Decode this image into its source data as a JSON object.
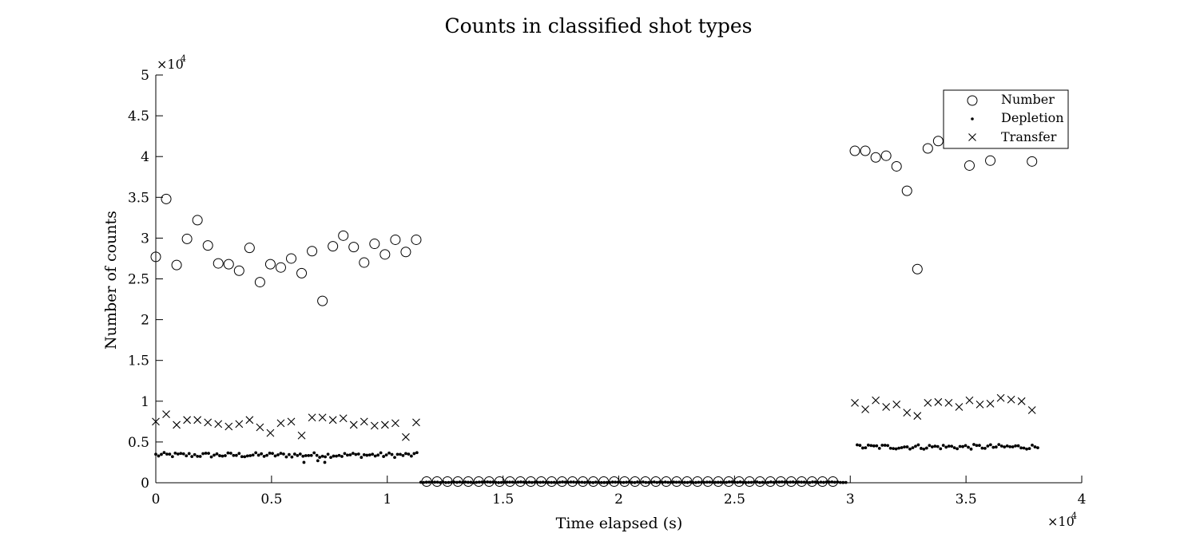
{
  "chart_data": {
    "type": "scatter",
    "title": "Counts in classified shot types",
    "xlabel": "Time elapsed (s)",
    "ylabel": "Number of counts",
    "x_multiplier_label": "×10",
    "x_multiplier_exp": "4",
    "y_multiplier_label": "×10",
    "y_multiplier_exp": "4",
    "xlim": [
      0,
      40000
    ],
    "ylim": [
      0,
      50000
    ],
    "x_ticks": [
      0,
      5000,
      10000,
      15000,
      20000,
      25000,
      30000,
      35000,
      40000
    ],
    "x_tick_labels": [
      "0",
      "0.5",
      "1",
      "1.5",
      "2",
      "2.5",
      "3",
      "3.5",
      "4"
    ],
    "y_ticks": [
      0,
      5000,
      10000,
      15000,
      20000,
      25000,
      30000,
      35000,
      40000,
      45000,
      50000
    ],
    "y_tick_labels": [
      "0",
      "0.5",
      "1",
      "1.5",
      "2",
      "2.5",
      "3",
      "3.5",
      "4",
      "4.5",
      "5"
    ],
    "grid": false,
    "legend_position": "top-right",
    "series": [
      {
        "name": "Number",
        "marker": "circle",
        "x": [
          0,
          450,
          900,
          1350,
          1800,
          2250,
          2700,
          3150,
          3600,
          4050,
          4500,
          4950,
          5400,
          5850,
          6300,
          6750,
          7200,
          7650,
          8100,
          8550,
          9000,
          9450,
          9900,
          10350,
          10800,
          11250,
          11700,
          12150,
          12600,
          13050,
          13500,
          13950,
          14400,
          14850,
          15300,
          15750,
          16200,
          16650,
          17100,
          17550,
          18000,
          18450,
          18900,
          19350,
          19800,
          20250,
          20700,
          21150,
          21600,
          22050,
          22500,
          22950,
          23400,
          23850,
          24300,
          24750,
          25200,
          25650,
          26100,
          26550,
          27000,
          27450,
          27900,
          28350,
          28800,
          29250,
          30200,
          30650,
          31100,
          31550,
          32000,
          32450,
          32900,
          33350,
          33800,
          34700,
          35150,
          36050,
          36950,
          37850
        ],
        "y": [
          27700,
          34800,
          26700,
          29900,
          32200,
          29100,
          26900,
          26800,
          26000,
          28800,
          24600,
          26800,
          26400,
          27500,
          25700,
          28400,
          22300,
          29000,
          30300,
          28900,
          27000,
          29300,
          28000,
          29800,
          28300,
          29800,
          150,
          150,
          150,
          150,
          150,
          150,
          150,
          150,
          150,
          150,
          150,
          150,
          150,
          150,
          150,
          150,
          150,
          150,
          150,
          150,
          150,
          150,
          150,
          150,
          150,
          150,
          150,
          150,
          150,
          150,
          150,
          150,
          150,
          150,
          150,
          150,
          150,
          150,
          150,
          150,
          40700,
          40700,
          39900,
          40100,
          38800,
          35800,
          26200,
          41000,
          41900,
          42300,
          38900,
          39500,
          42300,
          39400
        ]
      },
      {
        "name": "Depletion",
        "marker": "dot",
        "segments": [
          {
            "x_start": 0,
            "x_end": 11300,
            "level": 3400,
            "jitter": 300,
            "step": 120
          },
          {
            "x_start": 11450,
            "x_end": 29900,
            "level": 60,
            "jitter": 40,
            "step": 120
          },
          {
            "x_start": 30300,
            "x_end": 38200,
            "level": 4400,
            "jitter": 300,
            "step": 120
          }
        ],
        "outliers": [
          {
            "x": 6400,
            "y": 2500
          },
          {
            "x": 7300,
            "y": 2500
          },
          {
            "x": 7000,
            "y": 2700
          }
        ]
      },
      {
        "name": "Transfer",
        "marker": "x",
        "x": [
          0,
          450,
          900,
          1350,
          1800,
          2250,
          2700,
          3150,
          3600,
          4050,
          4500,
          4950,
          5400,
          5850,
          6300,
          6750,
          7200,
          7650,
          8100,
          8550,
          9000,
          9450,
          9900,
          10350,
          10800,
          11250,
          30200,
          30650,
          31100,
          31550,
          32000,
          32450,
          32900,
          33350,
          33800,
          34250,
          34700,
          35150,
          35600,
          36050,
          36500,
          36950,
          37400,
          37850
        ],
        "y": [
          7500,
          8400,
          7100,
          7700,
          7700,
          7400,
          7200,
          6900,
          7200,
          7700,
          6800,
          6100,
          7300,
          7500,
          5800,
          8000,
          8000,
          7700,
          7900,
          7100,
          7500,
          7000,
          7100,
          7300,
          5600,
          7400,
          9800,
          9000,
          10100,
          9300,
          9600,
          8600,
          8200,
          9800,
          9900,
          9800,
          9300,
          10100,
          9600,
          9700,
          10400,
          10200,
          10000,
          8900
        ]
      }
    ]
  }
}
